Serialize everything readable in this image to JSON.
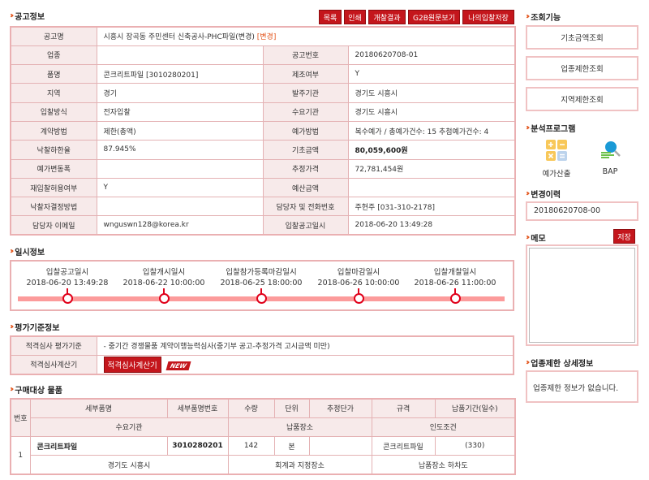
{
  "notice": {
    "title": "공고정보",
    "buttons": [
      "목록",
      "인쇄",
      "개찰결과",
      "G2B원문보기",
      "나의입찰저장"
    ],
    "name_label": "공고명",
    "name_value": "시흥시 장곡동 주민센터 신축공사-PHC파일(변경)",
    "name_tag": "[변경]",
    "rows": [
      {
        "l1": "업종",
        "v1": "",
        "l2": "공고번호",
        "v2": "20180620708-01"
      },
      {
        "l1": "품명",
        "v1": "콘크리트파일 [3010280201]",
        "l2": "제조여부",
        "v2": "Y"
      },
      {
        "l1": "지역",
        "v1": "경기",
        "l2": "발주기관",
        "v2": "경기도 시흥시"
      },
      {
        "l1": "입찰방식",
        "v1": "전자입찰",
        "l2": "수요기관",
        "v2": "경기도 시흥시"
      },
      {
        "l1": "계약방법",
        "v1": "제한(총액)",
        "l2": "예가방법",
        "v2": "복수예가 / 총예가건수: 15 추첨예가건수: 4"
      },
      {
        "l1": "낙찰하한율",
        "v1": "87.945%",
        "l2": "기초금액",
        "v2": "80,059,600원"
      },
      {
        "l1": "예가변동폭",
        "v1": "",
        "l2": "추정가격",
        "v2": "72,781,454원"
      },
      {
        "l1": "재입찰허용여부",
        "v1": "Y",
        "l2": "예산금액",
        "v2": ""
      },
      {
        "l1": "낙찰자결정방법",
        "v1": "",
        "l2": "담당자 및 전화번호",
        "v2": "주현주 [031-310-2178]"
      },
      {
        "l1": "담당자 이메일",
        "v1": "wnguswn128@korea.kr",
        "l2": "입찰공고일시",
        "v2": "2018-06-20 13:49:28"
      }
    ]
  },
  "schedule": {
    "title": "일시정보",
    "items": [
      {
        "label": "입찰공고일시",
        "date": "2018-06-20 13:49:28"
      },
      {
        "label": "입찰개시일시",
        "date": "2018-06-22 10:00:00"
      },
      {
        "label": "입찰참가등록마감일시",
        "date": "2018-06-25 18:00:00"
      },
      {
        "label": "입찰마감일시",
        "date": "2018-06-26 10:00:00"
      },
      {
        "label": "입찰개찰일시",
        "date": "2018-06-26 11:00:00"
      }
    ]
  },
  "evaluation": {
    "title": "평가기준정보",
    "criteria_label": "적격심사 평가기준",
    "criteria_value": "- 중기간 경쟁물품 계약이행능력심사(중기부 공고-추정가격 고시금액 미만)",
    "calc_label": "적격심사계산기",
    "calc_button": "적격심사계산기",
    "new_badge": "NEW"
  },
  "items": {
    "title": "구매대상 물품",
    "headers": {
      "no": "번호",
      "name": "세부품명",
      "code": "세부품명번호",
      "qty": "수량",
      "unit": "단위",
      "price": "추정단가",
      "spec": "규격",
      "period": "납품기간(일수)",
      "agency": "수요기관",
      "place": "납품장소",
      "terms": "인도조건"
    },
    "rows": [
      {
        "no": "1",
        "name": "콘크리트파일",
        "code": "3010280201",
        "qty": "142",
        "unit": "본",
        "price": "",
        "spec": "콘크리트파일",
        "period": "(330)",
        "agency": "경기도 시흥시",
        "place": "회계과 지정장소",
        "terms": "납품장소 하차도"
      }
    ]
  },
  "sidebar": {
    "lookup_title": "조회기능",
    "lookup_buttons": [
      "기초금액조회",
      "업종제한조회",
      "지역제한조회"
    ],
    "analysis_title": "분석프로그램",
    "programs": [
      {
        "label": "예가산출",
        "icon": "calculator-icon"
      },
      {
        "label": "BAP",
        "icon": "magnifier-chart-icon"
      }
    ],
    "history_title": "변경이력",
    "history_items": [
      "20180620708-00"
    ],
    "memo_title": "메모",
    "memo_save": "저장",
    "memo_value": "",
    "restriction_title": "업종제한 상세정보",
    "restriction_text": "업종제한 정보가 없습니다."
  },
  "colors": {
    "accent": "#c4161c",
    "border": "#e4b2b4",
    "label_bg": "#f7eaea",
    "timeline": "#fc9b9b"
  }
}
